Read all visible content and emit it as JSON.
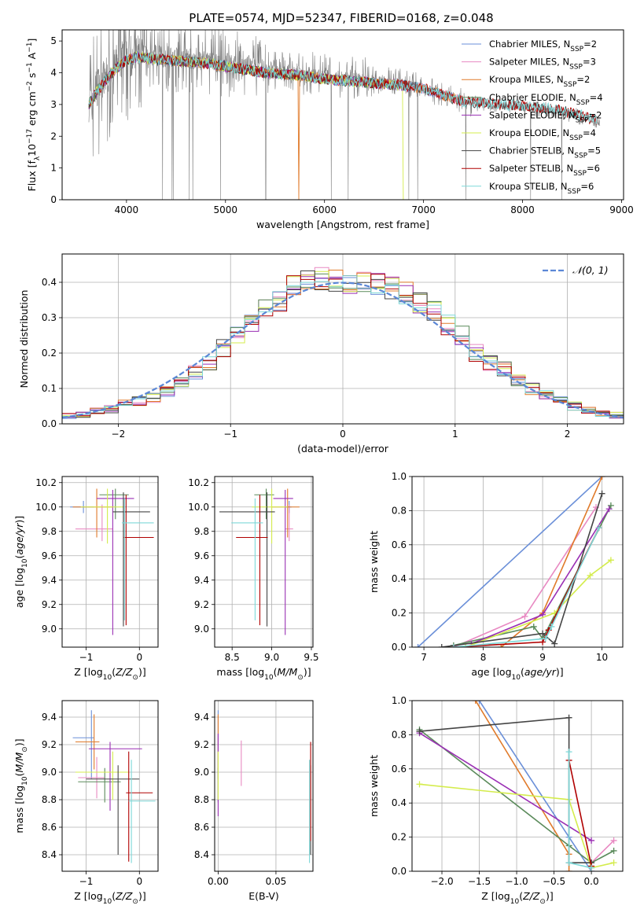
{
  "title": "PLATE=0574, MJD=52347, FIBERID=0168, z=0.048",
  "colors": {
    "Chabrier MILES": "#6a8fd8",
    "Salpeter MILES": "#e889c2",
    "Kroupa MILES": "#e07a2a",
    "Chabrier ELODIE": "#5a8a5a",
    "Salpeter ELODIE": "#9a2fb4",
    "Kroupa ELODIE": "#d4ec4c",
    "Chabrier STELIB": "#444444",
    "Salpeter STELIB": "#b00000",
    "Kroupa STELIB": "#7ed8d8",
    "data": "#808080",
    "normal": "#5b87d6"
  },
  "chart_data": [
    {
      "type": "line",
      "id": "spectrum",
      "xlabel": "wavelength [Angstrom, rest frame]",
      "ylabel": "Flux [f_λ 10^-17 erg cm^-2 s^-1 A^-1]",
      "xlim": [
        3350,
        9020
      ],
      "ylim": [
        0,
        5.35
      ],
      "xticks": [
        4000,
        5000,
        6000,
        7000,
        8000,
        9000
      ],
      "yticks": [
        0,
        1,
        2,
        3,
        4,
        5
      ],
      "data_range": [
        3620,
        8780
      ],
      "data_curve": {
        "x": [
          3620,
          3700,
          3800,
          3900,
          4000,
          4100,
          4200,
          4400,
          4600,
          4800,
          5000,
          5200,
          5400,
          5600,
          5800,
          6000,
          6200,
          6400,
          6600,
          6800,
          7000,
          7200,
          7400,
          7600,
          7800,
          8000,
          8200,
          8400,
          8600,
          8780
        ],
        "y": [
          3.1,
          3.5,
          3.9,
          4.25,
          4.5,
          4.6,
          4.55,
          4.5,
          4.45,
          4.4,
          4.3,
          4.2,
          4.1,
          4.05,
          4.0,
          3.9,
          3.85,
          3.8,
          3.75,
          3.7,
          3.5,
          3.3,
          3.1,
          3.0,
          2.95,
          2.9,
          2.85,
          2.75,
          2.6,
          2.4
        ]
      },
      "model_curve": {
        "x": [
          3620,
          3700,
          3800,
          3900,
          4000,
          4100,
          4200,
          4400,
          4600,
          4800,
          5000,
          5200,
          5400,
          5600,
          5800,
          6000,
          6200,
          6400,
          6600,
          6800,
          7000,
          7200,
          7400,
          7600,
          7800,
          8000,
          8200,
          8400,
          8600,
          8780
        ],
        "y": [
          3.0,
          3.4,
          3.8,
          4.15,
          4.4,
          4.5,
          4.45,
          4.4,
          4.35,
          4.3,
          4.2,
          4.1,
          4.0,
          3.95,
          3.9,
          3.8,
          3.75,
          3.7,
          3.65,
          3.6,
          3.5,
          3.3,
          3.1,
          3.05,
          3.0,
          2.95,
          2.9,
          2.8,
          2.65,
          2.45
        ]
      },
      "series": [
        {
          "name": "Chabrier MILES",
          "n_ssp": "2",
          "x_end": 7400
        },
        {
          "name": "Salpeter MILES",
          "n_ssp": "3",
          "x_end": 7400
        },
        {
          "name": "Kroupa MILES",
          "n_ssp": "2",
          "x_end": 7400
        },
        {
          "name": "Chabrier ELODIE",
          "n_ssp": "4",
          "x_end": 6800
        },
        {
          "name": "Salpeter ELODIE",
          "n_ssp": "2",
          "x_end": 6800
        },
        {
          "name": "Kroupa ELODIE",
          "n_ssp": "4",
          "x_end": 6800
        },
        {
          "name": "Chabrier STELIB",
          "n_ssp": "5",
          "x_end": 8750
        },
        {
          "name": "Salpeter STELIB",
          "n_ssp": "6",
          "x_end": 8750
        },
        {
          "name": "Kroupa STELIB",
          "n_ssp": "6",
          "x_end": 8750
        }
      ],
      "legend": "right"
    },
    {
      "type": "line",
      "id": "residuals",
      "subtype": "step histogram",
      "xlabel": "(data-model)/error",
      "ylabel": "Normed distribution",
      "xlim": [
        -2.5,
        2.5
      ],
      "ylim": [
        0,
        0.48
      ],
      "xticks": [
        -2,
        -1,
        0,
        1,
        2
      ],
      "yticks": [
        0.0,
        0.1,
        0.2,
        0.3,
        0.4
      ],
      "bins": [
        -2.5,
        2.5,
        40
      ],
      "base_values": [
        0.022,
        0.025,
        0.035,
        0.042,
        0.055,
        0.065,
        0.075,
        0.09,
        0.115,
        0.145,
        0.175,
        0.215,
        0.255,
        0.29,
        0.32,
        0.35,
        0.395,
        0.415,
        0.41,
        0.405,
        0.4,
        0.395,
        0.4,
        0.385,
        0.37,
        0.34,
        0.32,
        0.28,
        0.25,
        0.2,
        0.17,
        0.155,
        0.12,
        0.1,
        0.08,
        0.065,
        0.05,
        0.04,
        0.03,
        0.025
      ],
      "normal_label": "𝒩(0, 1)",
      "legend": "top-right",
      "grid": true
    },
    {
      "type": "scatter",
      "id": "z-age",
      "subtype": "error bars",
      "xlabel": "Z [log10(Z/Z⊙)]",
      "ylabel": "age [log10(age/yr)]",
      "xlim": [
        -1.45,
        0.35
      ],
      "ylim": [
        8.85,
        10.25
      ],
      "xticks": [
        -1,
        0
      ],
      "yticks": [
        9.0,
        9.2,
        9.4,
        9.6,
        9.8,
        10.0,
        10.2
      ],
      "points": [
        {
          "series": "Chabrier MILES",
          "x": -1.05,
          "xerr": [
            0.25,
            0.2
          ],
          "y": 10.0,
          "yerr": [
            0.05,
            0.05
          ]
        },
        {
          "series": "Salpeter MILES",
          "x": -0.7,
          "xerr": [
            0.5,
            0.2
          ],
          "y": 9.82,
          "yerr": [
            0.1,
            0.2
          ]
        },
        {
          "series": "Kroupa MILES",
          "x": -0.8,
          "xerr": [
            0.45,
            0.3
          ],
          "y": 10.0,
          "yerr": [
            0.25,
            0.15
          ]
        },
        {
          "series": "Chabrier ELODIE",
          "x": -0.45,
          "xerr": [
            0.3,
            0.25
          ],
          "y": 10.1,
          "yerr": [
            0.2,
            0.05
          ]
        },
        {
          "series": "Salpeter ELODIE",
          "x": -0.5,
          "xerr": [
            0.3,
            0.4
          ],
          "y": 10.07,
          "yerr": [
            1.12,
            0.07
          ]
        },
        {
          "series": "Kroupa ELODIE",
          "x": -0.6,
          "xerr": [
            0.5,
            0.3
          ],
          "y": 10.0,
          "yerr": [
            0.3,
            0.15
          ]
        },
        {
          "series": "Chabrier STELIB",
          "x": -0.3,
          "xerr": [
            0.2,
            0.5
          ],
          "y": 9.96,
          "yerr": [
            0.94,
            0.16
          ]
        },
        {
          "series": "Salpeter STELIB",
          "x": -0.25,
          "xerr": [
            0.05,
            0.52
          ],
          "y": 9.75,
          "yerr": [
            0.72,
            0.35
          ]
        },
        {
          "series": "Kroupa STELIB",
          "x": -0.28,
          "xerr": [
            0.05,
            0.55
          ],
          "y": 9.87,
          "yerr": [
            0.8,
            0.2
          ]
        }
      ],
      "grid": true
    },
    {
      "type": "scatter",
      "id": "mass-age",
      "subtype": "error bars",
      "xlabel": "mass [log10(M/M⊙)]",
      "ylabel": "",
      "xlim": [
        8.28,
        9.52
      ],
      "ylim": [
        8.85,
        10.25
      ],
      "xticks": [
        8.5,
        9.0,
        9.5
      ],
      "yticks": [
        9.0,
        9.2,
        9.4,
        9.6,
        9.8,
        10.0,
        10.2
      ],
      "points": [
        {
          "series": "Chabrier MILES",
          "x": 9.22,
          "xerr": [
            0.05,
            0.03
          ],
          "y": 10.0,
          "yerr": [
            0.05,
            0.05
          ]
        },
        {
          "series": "Salpeter MILES",
          "x": 9.22,
          "xerr": [
            0.05,
            0.05
          ],
          "y": 9.82,
          "yerr": [
            0.1,
            0.2
          ]
        },
        {
          "series": "Kroupa MILES",
          "x": 9.2,
          "xerr": [
            0.2,
            0.15
          ],
          "y": 10.0,
          "yerr": [
            0.25,
            0.15
          ]
        },
        {
          "series": "Chabrier ELODIE",
          "x": 8.93,
          "xerr": [
            0.15,
            0.1
          ],
          "y": 10.1,
          "yerr": [
            0.2,
            0.05
          ]
        },
        {
          "series": "Salpeter ELODIE",
          "x": 9.17,
          "xerr": [
            0.15,
            0.1
          ],
          "y": 10.07,
          "yerr": [
            1.12,
            0.07
          ]
        },
        {
          "series": "Kroupa ELODIE",
          "x": 9.0,
          "xerr": [
            0.25,
            0.2
          ],
          "y": 10.0,
          "yerr": [
            0.3,
            0.15
          ]
        },
        {
          "series": "Chabrier STELIB",
          "x": 8.94,
          "xerr": [
            0.6,
            0.1
          ],
          "y": 9.96,
          "yerr": [
            0.94,
            0.16
          ]
        },
        {
          "series": "Salpeter STELIB",
          "x": 8.85,
          "xerr": [
            0.3,
            0.1
          ],
          "y": 9.75,
          "yerr": [
            0.72,
            0.35
          ]
        },
        {
          "series": "Kroupa STELIB",
          "x": 8.79,
          "xerr": [
            0.3,
            0.1
          ],
          "y": 9.87,
          "yerr": [
            0.8,
            0.2
          ]
        }
      ],
      "grid": true
    },
    {
      "type": "line",
      "id": "age-weight",
      "xlabel": "age [log10(age/yr)]",
      "ylabel": "mass weight",
      "xlim": [
        6.8,
        10.35
      ],
      "ylim": [
        0,
        1.0
      ],
      "xticks": [
        7,
        8,
        9,
        10
      ],
      "yticks": [
        0.0,
        0.2,
        0.4,
        0.6,
        0.8,
        1.0
      ],
      "series": [
        {
          "name": "Chabrier MILES",
          "x": [
            6.9,
            10.0
          ],
          "y": [
            0.0,
            1.0
          ]
        },
        {
          "name": "Salpeter MILES",
          "x": [
            7.5,
            8.7,
            9.9
          ],
          "y": [
            0.0,
            0.18,
            0.82
          ]
        },
        {
          "name": "Kroupa MILES",
          "x": [
            8.3,
            9.0,
            10.0
          ],
          "y": [
            0.0,
            0.2,
            1.0
          ]
        },
        {
          "name": "Chabrier ELODIE",
          "x": [
            7.5,
            8.85,
            9.0,
            10.15
          ],
          "y": [
            0.01,
            0.12,
            0.05,
            0.83
          ]
        },
        {
          "name": "Salpeter ELODIE",
          "x": [
            7.8,
            9.0,
            10.12
          ],
          "y": [
            0.02,
            0.19,
            0.81
          ]
        },
        {
          "name": "Kroupa ELODIE",
          "x": [
            7.7,
            9.2,
            9.8,
            10.15
          ],
          "y": [
            0.0,
            0.2,
            0.42,
            0.51
          ]
        },
        {
          "name": "Chabrier STELIB",
          "x": [
            7.3,
            9.0,
            9.2,
            10.0
          ],
          "y": [
            0.0,
            0.08,
            0.02,
            0.9
          ]
        },
        {
          "name": "Salpeter STELIB",
          "x": [
            7.5,
            9.0,
            9.1,
            9.95
          ],
          "y": [
            0.0,
            0.03,
            0.1,
            0.7
          ]
        },
        {
          "name": "Kroupa STELIB",
          "x": [
            7.5,
            9.05,
            9.15,
            9.95
          ],
          "y": [
            0.0,
            0.05,
            0.12,
            0.7
          ]
        }
      ],
      "grid": true
    },
    {
      "type": "scatter",
      "id": "z-mass",
      "subtype": "error bars",
      "xlabel": "Z [log10(Z/Z⊙)]",
      "ylabel": "mass [log10(M/M⊙)]",
      "xlim": [
        -1.45,
        0.35
      ],
      "ylim": [
        8.28,
        9.52
      ],
      "xticks": [
        -1,
        0
      ],
      "yticks": [
        8.4,
        8.6,
        8.8,
        9.0,
        9.2,
        9.4
      ],
      "points": [
        {
          "series": "Chabrier MILES",
          "x": -0.9,
          "xerr": [
            0.35,
            0.05
          ],
          "y": 9.25,
          "yerr": [
            0.3,
            0.2
          ]
        },
        {
          "series": "Salpeter MILES",
          "x": -0.8,
          "xerr": [
            0.35,
            0.15
          ],
          "y": 8.96,
          "yerr": [
            0.15,
            0.15
          ]
        },
        {
          "series": "Kroupa MILES",
          "x": -0.85,
          "xerr": [
            0.35,
            0.1
          ],
          "y": 9.22,
          "yerr": [
            0.2,
            0.2
          ]
        },
        {
          "series": "Chabrier ELODIE",
          "x": -0.65,
          "xerr": [
            0.5,
            0.3
          ],
          "y": 8.93,
          "yerr": [
            0.15,
            0.1
          ]
        },
        {
          "series": "Salpeter ELODIE",
          "x": -0.55,
          "xerr": [
            0.4,
            0.6
          ],
          "y": 9.17,
          "yerr": [
            0.45,
            0.05
          ]
        },
        {
          "series": "Kroupa ELODIE",
          "x": -0.5,
          "xerr": [
            0.7,
            0.3
          ],
          "y": 9.0,
          "yerr": [
            0.2,
            0.15
          ]
        },
        {
          "series": "Chabrier STELIB",
          "x": -0.4,
          "xerr": [
            0.6,
            0.4
          ],
          "y": 8.95,
          "yerr": [
            0.55,
            0.1
          ]
        },
        {
          "series": "Salpeter STELIB",
          "x": -0.2,
          "xerr": [
            0.05,
            0.45
          ],
          "y": 8.85,
          "yerr": [
            0.5,
            0.3
          ]
        },
        {
          "series": "Kroupa STELIB",
          "x": -0.15,
          "xerr": [
            0.05,
            0.45
          ],
          "y": 8.79,
          "yerr": [
            0.45,
            0.3
          ]
        }
      ],
      "grid": true
    },
    {
      "type": "scatter",
      "id": "ebv-mass",
      "subtype": "error bars",
      "xlabel": "E(B-V)",
      "ylabel": "",
      "xlim": [
        -0.003,
        0.082
      ],
      "ylim": [
        8.28,
        9.52
      ],
      "xticks": [
        0.0,
        0.05
      ],
      "yticks": [
        8.4,
        8.6,
        8.8,
        9.0,
        9.2,
        9.4
      ],
      "points": [
        {
          "series": "Chabrier MILES",
          "x": 0.0,
          "y": 9.25,
          "yerr": [
            0.3,
            0.2
          ]
        },
        {
          "series": "Salpeter MILES",
          "x": 0.02,
          "y": 9.06,
          "yerr": [
            0.16,
            0.17
          ]
        },
        {
          "series": "Kroupa MILES",
          "x": 0.0,
          "y": 9.22,
          "yerr": [
            0.2,
            0.2
          ]
        },
        {
          "series": "Chabrier ELODIE",
          "x": 0.0,
          "y": 8.93,
          "yerr": [
            0.15,
            0.1
          ]
        },
        {
          "series": "Salpeter ELODIE",
          "x": 0.0,
          "y": 9.0,
          "yerr": [
            0.32,
            0.28
          ]
        },
        {
          "series": "Kroupa ELODIE",
          "x": 0.0,
          "y": 9.0,
          "yerr": [
            0.2,
            0.15
          ]
        },
        {
          "series": "Chabrier STELIB",
          "x": 0.08,
          "y": 8.95,
          "yerr": [
            0.55,
            0.1
          ]
        },
        {
          "series": "Salpeter STELIB",
          "x": 0.08,
          "y": 9.0,
          "yerr": [
            0.5,
            0.22
          ]
        },
        {
          "series": "Kroupa STELIB",
          "x": 0.079,
          "y": 8.79,
          "yerr": [
            0.45,
            0.3
          ]
        }
      ],
      "grid": true
    },
    {
      "type": "line",
      "id": "z-weight",
      "xlabel": "Z [log10(Z/Z⊙)]",
      "ylabel": "mass weight",
      "xlim": [
        -2.4,
        0.42
      ],
      "ylim": [
        0,
        1.0
      ],
      "xticks": [
        -2.0,
        -1.5,
        -1.0,
        -0.5,
        0.0
      ],
      "yticks": [
        0.0,
        0.2,
        0.4,
        0.6,
        0.8,
        1.0
      ],
      "series": [
        {
          "name": "Chabrier MILES",
          "x": [
            -1.5,
            -0.3,
            0.0
          ],
          "y": [
            1.0,
            0.2,
            0.0
          ]
        },
        {
          "name": "Salpeter MILES",
          "x": [
            0.3,
            0.0,
            0.0
          ],
          "y": [
            0.18,
            0.05,
            0.0
          ]
        },
        {
          "name": "Kroupa MILES",
          "x": [
            -1.55,
            -0.3,
            -0.3
          ],
          "y": [
            1.0,
            0.1,
            0.0
          ]
        },
        {
          "name": "Chabrier ELODIE",
          "x": [
            -2.3,
            -0.3,
            0.0,
            0.3
          ],
          "y": [
            0.83,
            0.15,
            0.05,
            0.12
          ]
        },
        {
          "name": "Salpeter ELODIE",
          "x": [
            -2.3,
            0.0
          ],
          "y": [
            0.81,
            0.18
          ]
        },
        {
          "name": "Kroupa ELODIE",
          "x": [
            -2.3,
            -0.3,
            0.0,
            0.3
          ],
          "y": [
            0.51,
            0.42,
            0.02,
            0.05
          ]
        },
        {
          "name": "Chabrier STELIB",
          "x": [
            -2.3,
            -0.3,
            -0.3,
            0.0
          ],
          "y": [
            0.82,
            0.9,
            0.05,
            0.05
          ]
        },
        {
          "name": "Salpeter STELIB",
          "x": [
            -0.3,
            0.0
          ],
          "y": [
            0.65,
            0.03
          ]
        },
        {
          "name": "Kroupa STELIB",
          "x": [
            -0.3,
            -0.3,
            0.0
          ],
          "y": [
            0.7,
            0.05,
            0.02
          ]
        }
      ],
      "grid": true
    }
  ]
}
